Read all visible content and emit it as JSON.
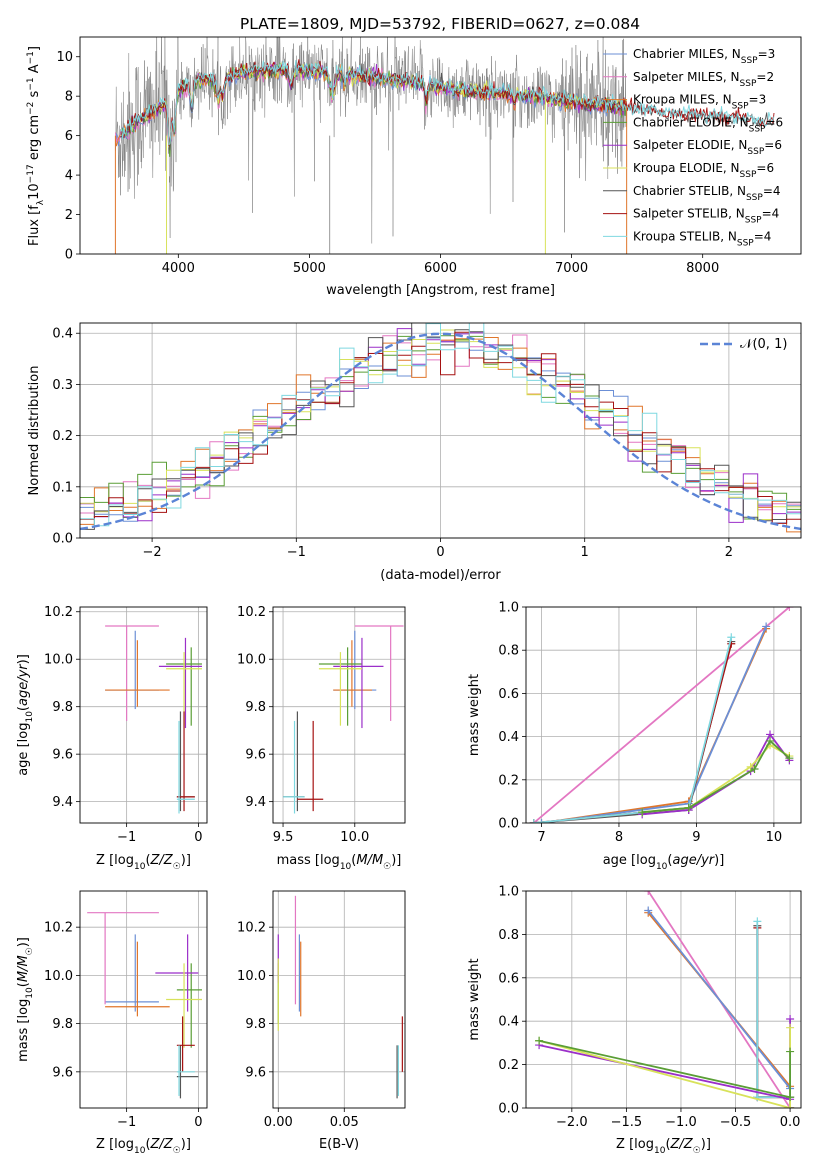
{
  "figure": {
    "title": "PLATE=1809, MJD=53792, FIBERID=0627, z=0.084"
  },
  "colors": {
    "Chabrier MILES": "#6b8fd6",
    "Salpeter MILES": "#e377c2",
    "Kroupa MILES": "#e0762b",
    "Chabrier ELODIE": "#5a9e36",
    "Salpeter ELODIE": "#9b2fc9",
    "Kroupa ELODIE": "#d8e25a",
    "Chabrier STELIB": "#555555",
    "Salpeter STELIB": "#a51212",
    "Kroupa STELIB": "#7fd8e0",
    "data": "#808080",
    "normal": "#5b84d6"
  },
  "chart_data": [
    {
      "id": "spectrum",
      "type": "line",
      "title": "PLATE=1809, MJD=53792, FIBERID=0627, z=0.084",
      "xlabel": "wavelength [Angstrom, rest frame]",
      "ylabel": "Flux [f_λ 10^-17 erg cm^-2 s^-1 A^-1]",
      "xlim": [
        3250,
        8750
      ],
      "ylim": [
        0,
        11
      ],
      "xticks": [
        "4000",
        "5000",
        "6000",
        "7000",
        "8000"
      ],
      "yticks": [
        "0",
        "2",
        "4",
        "6",
        "8",
        "10"
      ],
      "legend_position": "top-right",
      "legend": [
        {
          "name": "Chabrier MILES",
          "n": "3"
        },
        {
          "name": "Salpeter MILES",
          "n": "2"
        },
        {
          "name": "Kroupa MILES",
          "n": "3"
        },
        {
          "name": "Chabrier ELODIE",
          "n": "6"
        },
        {
          "name": "Salpeter ELODIE",
          "n": "6"
        },
        {
          "name": "Kroupa ELODIE",
          "n": "6"
        },
        {
          "name": "Chabrier STELIB",
          "n": "4"
        },
        {
          "name": "Salpeter STELIB",
          "n": "4"
        },
        {
          "name": "Kroupa STELIB",
          "n": "4"
        }
      ],
      "continuum": {
        "x": [
          3520,
          3600,
          3700,
          3800,
          3900,
          4000,
          4100,
          4200,
          4300,
          4400,
          4500,
          4700,
          4900,
          5100,
          5300,
          5500,
          5700,
          5900,
          6100,
          6300,
          6500,
          6700,
          6900,
          7100,
          7300,
          7500,
          7700,
          7900,
          8100,
          8300,
          8500
        ],
        "y": [
          5.8,
          6.2,
          6.8,
          7.2,
          7.6,
          8.3,
          8.6,
          8.9,
          8.8,
          9.0,
          9.2,
          9.3,
          9.3,
          9.2,
          9.1,
          8.95,
          8.8,
          8.6,
          8.3,
          8.2,
          8.1,
          8.0,
          7.8,
          7.6,
          7.5,
          7.3,
          7.1,
          7.0,
          6.9,
          6.8,
          6.6
        ]
      },
      "model_range": [
        3520,
        8550
      ],
      "data_range": [
        3520,
        7420
      ],
      "grid": false
    },
    {
      "id": "residuals",
      "type": "histogram",
      "xlabel": "(data-model)/error",
      "ylabel": "Normed distribution",
      "xlim": [
        -2.5,
        2.5
      ],
      "ylim": [
        0,
        0.42
      ],
      "xticks": [
        "-2",
        "-1",
        "0",
        "1",
        "2"
      ],
      "yticks": [
        "0.0",
        "0.1",
        "0.2",
        "0.3",
        "0.4"
      ],
      "bin_width": 0.1,
      "series_names": [
        "Chabrier MILES",
        "Salpeter MILES",
        "Kroupa MILES",
        "Chabrier ELODIE",
        "Salpeter ELODIE",
        "Kroupa ELODIE",
        "Chabrier STELIB",
        "Salpeter STELIB",
        "Kroupa STELIB"
      ],
      "reference_curve": {
        "label": "N(0,1)",
        "mu": 0,
        "sigma": 1
      },
      "grid": true
    },
    {
      "id": "age-vs-Z",
      "type": "errorbar",
      "xlabel": "Z [log10(Z/Z☉)]",
      "ylabel": "age [log10(age/yr)]",
      "xlim": [
        -1.65,
        0.12
      ],
      "ylim": [
        9.31,
        10.22
      ],
      "xticks": [
        -1,
        0
      ],
      "yticks": [
        9.4,
        9.6,
        9.8,
        10.0,
        10.2
      ],
      "points": [
        {
          "s": "Chabrier MILES",
          "x": -0.88,
          "y": 9.87,
          "xl": -1.3,
          "xh": -0.55,
          "yl": 9.79,
          "yh": 10.12
        },
        {
          "s": "Salpeter MILES",
          "x": -1.0,
          "y": 10.14,
          "xl": -1.3,
          "xh": -0.55,
          "yl": 9.74,
          "yh": 10.14
        },
        {
          "s": "Kroupa MILES",
          "x": -0.85,
          "y": 9.87,
          "xl": -1.3,
          "xh": -0.4,
          "yl": 9.8,
          "yh": 10.08
        },
        {
          "s": "Chabrier ELODIE",
          "x": -0.1,
          "y": 9.98,
          "xl": -0.45,
          "xh": 0.05,
          "yl": 9.72,
          "yh": 10.05
        },
        {
          "s": "Salpeter ELODIE",
          "x": -0.18,
          "y": 9.97,
          "xl": -0.55,
          "xh": 0.05,
          "yl": 9.71,
          "yh": 10.09
        },
        {
          "s": "Kroupa ELODIE",
          "x": -0.2,
          "y": 9.96,
          "xl": -0.45,
          "xh": 0.05,
          "yl": 9.72,
          "yh": 10.03
        },
        {
          "s": "Chabrier STELIB",
          "x": -0.25,
          "y": 9.42,
          "xl": -0.3,
          "xh": -0.05,
          "yl": 9.36,
          "yh": 9.78
        },
        {
          "s": "Salpeter STELIB",
          "x": -0.2,
          "y": 9.42,
          "xl": -0.3,
          "xh": -0.05,
          "yl": 9.36,
          "yh": 9.78
        },
        {
          "s": "Kroupa STELIB",
          "x": -0.27,
          "y": 9.41,
          "xl": -0.3,
          "xh": -0.05,
          "yl": 9.35,
          "yh": 9.74
        }
      ],
      "grid": true
    },
    {
      "id": "age-vs-mass",
      "type": "errorbar",
      "xlabel": "mass [log10(M/M☉)]",
      "ylabel": "",
      "xlim": [
        9.43,
        10.35
      ],
      "ylim": [
        9.31,
        10.22
      ],
      "xticks": [
        9.5,
        10.0
      ],
      "yticks": [
        9.4,
        9.6,
        9.8,
        10.0,
        10.2
      ],
      "points": [
        {
          "s": "Chabrier MILES",
          "x": 10.0,
          "y": 9.87,
          "xl": 9.85,
          "xh": 10.15,
          "yl": 9.79,
          "yh": 10.12
        },
        {
          "s": "Salpeter MILES",
          "x": 10.25,
          "y": 10.14,
          "xl": 10.0,
          "xh": 10.34,
          "yl": 9.74,
          "yh": 10.14
        },
        {
          "s": "Kroupa MILES",
          "x": 9.98,
          "y": 9.87,
          "xl": 9.85,
          "xh": 10.12,
          "yl": 9.8,
          "yh": 10.08
        },
        {
          "s": "Chabrier ELODIE",
          "x": 9.95,
          "y": 9.98,
          "xl": 9.75,
          "xh": 10.05,
          "yl": 9.72,
          "yh": 10.05
        },
        {
          "s": "Salpeter ELODIE",
          "x": 10.05,
          "y": 9.97,
          "xl": 9.85,
          "xh": 10.2,
          "yl": 9.71,
          "yh": 10.09
        },
        {
          "s": "Kroupa ELODIE",
          "x": 9.9,
          "y": 9.96,
          "xl": 9.75,
          "xh": 10.05,
          "yl": 9.72,
          "yh": 10.03
        },
        {
          "s": "Chabrier STELIB",
          "x": 9.6,
          "y": 9.42,
          "xl": 9.5,
          "xh": 9.65,
          "yl": 9.36,
          "yh": 9.78
        },
        {
          "s": "Salpeter STELIB",
          "x": 9.71,
          "y": 9.41,
          "xl": 9.6,
          "xh": 9.78,
          "yl": 9.36,
          "yh": 9.74
        },
        {
          "s": "Kroupa STELIB",
          "x": 9.58,
          "y": 9.42,
          "xl": 9.5,
          "xh": 9.65,
          "yl": 9.35,
          "yh": 9.74
        }
      ],
      "grid": true
    },
    {
      "id": "weight-vs-age",
      "type": "line",
      "xlabel": "age [log10(age/yr)]",
      "ylabel": "mass weight",
      "xlim": [
        6.8,
        10.35
      ],
      "ylim": [
        0,
        1
      ],
      "xticks": [
        7,
        8,
        9,
        10
      ],
      "yticks": [
        0.0,
        0.2,
        0.4,
        0.6,
        0.8,
        1.0
      ],
      "series": [
        {
          "name": "Salpeter MILES",
          "x": [
            6.9,
            10.2
          ],
          "y": [
            0.0,
            1.0
          ]
        },
        {
          "name": "Kroupa MILES",
          "x": [
            7.0,
            8.9,
            9.9
          ],
          "y": [
            0.0,
            0.1,
            0.9
          ]
        },
        {
          "name": "Chabrier MILES",
          "x": [
            7.0,
            8.9,
            9.9
          ],
          "y": [
            0.0,
            0.09,
            0.91
          ]
        },
        {
          "name": "Chabrier STELIB",
          "x": [
            6.9,
            8.9,
            9.45
          ],
          "y": [
            0.0,
            0.06,
            0.84
          ]
        },
        {
          "name": "Salpeter STELIB",
          "x": [
            6.9,
            8.9,
            9.45
          ],
          "y": [
            0.0,
            0.07,
            0.83
          ]
        },
        {
          "name": "Kroupa STELIB",
          "x": [
            6.9,
            8.9,
            9.45
          ],
          "y": [
            0.0,
            0.07,
            0.86
          ]
        },
        {
          "name": "Salpeter ELODIE",
          "x": [
            8.3,
            8.9,
            9.7,
            9.95,
            10.2
          ],
          "y": [
            0.04,
            0.06,
            0.24,
            0.41,
            0.29
          ]
        },
        {
          "name": "Kroupa ELODIE",
          "x": [
            8.3,
            8.9,
            9.7,
            9.95,
            10.2
          ],
          "y": [
            0.05,
            0.07,
            0.26,
            0.36,
            0.31
          ]
        },
        {
          "name": "Chabrier ELODIE",
          "x": [
            8.3,
            8.9,
            9.75,
            9.95,
            10.2
          ],
          "y": [
            0.05,
            0.07,
            0.25,
            0.38,
            0.3
          ]
        }
      ],
      "grid": true
    },
    {
      "id": "mass-vs-Z",
      "type": "errorbar",
      "xlabel": "Z [log10(Z/Z☉)]",
      "ylabel": "mass [log10(M/M☉)]",
      "xlim": [
        -1.65,
        0.12
      ],
      "ylim": [
        9.45,
        10.35
      ],
      "xticks": [
        -1,
        0
      ],
      "yticks": [
        9.6,
        9.8,
        10.0,
        10.2
      ],
      "points": [
        {
          "s": "Chabrier MILES",
          "x": -0.88,
          "y": 9.89,
          "xl": -1.3,
          "xh": -0.55,
          "yl": 9.85,
          "yh": 10.17
        },
        {
          "s": "Salpeter MILES",
          "x": -1.3,
          "y": 10.26,
          "xl": -1.55,
          "xh": -0.55,
          "yl": 9.88,
          "yh": 10.26
        },
        {
          "s": "Kroupa MILES",
          "x": -0.85,
          "y": 9.87,
          "xl": -1.3,
          "xh": -0.4,
          "yl": 9.83,
          "yh": 10.14
        },
        {
          "s": "Chabrier ELODIE",
          "x": -0.1,
          "y": 9.94,
          "xl": -0.3,
          "xh": 0.05,
          "yl": 9.7,
          "yh": 10.05
        },
        {
          "s": "Salpeter ELODIE",
          "x": -0.15,
          "y": 10.01,
          "xl": -0.6,
          "xh": 0.0,
          "yl": 9.85,
          "yh": 10.17
        },
        {
          "s": "Kroupa ELODIE",
          "x": -0.2,
          "y": 9.9,
          "xl": -0.45,
          "xh": 0.05,
          "yl": 9.7,
          "yh": 10.05
        },
        {
          "s": "Chabrier STELIB",
          "x": -0.25,
          "y": 9.58,
          "xl": -0.3,
          "xh": 0.0,
          "yl": 9.49,
          "yh": 9.71
        },
        {
          "s": "Salpeter STELIB",
          "x": -0.22,
          "y": 9.71,
          "xl": -0.3,
          "xh": -0.05,
          "yl": 9.6,
          "yh": 9.83
        },
        {
          "s": "Kroupa STELIB",
          "x": -0.27,
          "y": 9.6,
          "xl": -0.3,
          "xh": -0.05,
          "yl": 9.5,
          "yh": 9.71
        }
      ],
      "grid": true
    },
    {
      "id": "mass-vs-EBV",
      "type": "errorbar",
      "xlabel": "E(B-V)",
      "ylabel": "",
      "xlim": [
        -0.004,
        0.096
      ],
      "ylim": [
        9.45,
        10.35
      ],
      "xticks": [
        0.0,
        0.05
      ],
      "yticks": [
        9.6,
        9.8,
        10.0,
        10.2
      ],
      "points": [
        {
          "s": "Chabrier MILES",
          "x": 0.016,
          "y": 10.0,
          "xl": 0.016,
          "xh": 0.016,
          "yl": 9.85,
          "yh": 10.17
        },
        {
          "s": "Salpeter MILES",
          "x": 0.013,
          "y": 10.1,
          "xl": 0.013,
          "xh": 0.013,
          "yl": 9.88,
          "yh": 10.33
        },
        {
          "s": "Kroupa MILES",
          "x": 0.017,
          "y": 10.0,
          "xl": 0.017,
          "xh": 0.017,
          "yl": 9.83,
          "yh": 10.14
        },
        {
          "s": "Chabrier ELODIE",
          "x": 0.0,
          "y": 9.95,
          "xl": 0.0,
          "xh": 0.0,
          "yl": 9.8,
          "yh": 10.05
        },
        {
          "s": "Salpeter ELODIE",
          "x": 0.0,
          "y": 10.05,
          "xl": 0.0,
          "xh": 0.0,
          "yl": 9.97,
          "yh": 10.17
        },
        {
          "s": "Kroupa ELODIE",
          "x": 0.0,
          "y": 9.95,
          "xl": 0.0,
          "xh": 0.0,
          "yl": 9.77,
          "yh": 10.07
        },
        {
          "s": "Chabrier STELIB",
          "x": 0.09,
          "y": 9.6,
          "xl": 0.09,
          "xh": 0.09,
          "yl": 9.49,
          "yh": 9.71
        },
        {
          "s": "Salpeter STELIB",
          "x": 0.094,
          "y": 9.7,
          "xl": 0.094,
          "xh": 0.094,
          "yl": 9.6,
          "yh": 9.83
        },
        {
          "s": "Kroupa STELIB",
          "x": 0.091,
          "y": 9.6,
          "xl": 0.091,
          "xh": 0.091,
          "yl": 9.5,
          "yh": 9.71
        }
      ],
      "grid": true
    },
    {
      "id": "weight-vs-Z",
      "type": "line",
      "xlabel": "Z [log10(Z/Z☉)]",
      "ylabel": "mass weight",
      "xlim": [
        -2.42,
        0.1
      ],
      "ylim": [
        0,
        1
      ],
      "xticks": [
        -2.0,
        -1.5,
        -1.0,
        -0.5,
        0.0
      ],
      "yticks": [
        0.0,
        0.2,
        0.4,
        0.6,
        0.8,
        1.0
      ],
      "series": [
        {
          "name": "Salpeter MILES",
          "x": [
            -1.3,
            0.0
          ],
          "y": [
            1.0,
            0.0
          ]
        },
        {
          "name": "Kroupa MILES",
          "x": [
            -1.3,
            0.0,
            0.0
          ],
          "y": [
            0.9,
            0.1,
            0.0
          ]
        },
        {
          "name": "Chabrier MILES",
          "x": [
            -1.3,
            0.0,
            0.0
          ],
          "y": [
            0.91,
            0.09,
            0.0
          ]
        },
        {
          "name": "Chabrier STELIB",
          "x": [
            -0.3,
            -0.3,
            0.0,
            0.0
          ],
          "y": [
            0.84,
            0.05,
            0.05,
            0.0
          ]
        },
        {
          "name": "Salpeter STELIB",
          "x": [
            -0.3,
            -0.3,
            0.0,
            0.0
          ],
          "y": [
            0.83,
            0.05,
            0.05,
            0.0
          ]
        },
        {
          "name": "Kroupa STELIB",
          "x": [
            -0.3,
            -0.3,
            0.0,
            0.0
          ],
          "y": [
            0.86,
            0.05,
            0.05,
            0.0
          ]
        },
        {
          "name": "Salpeter ELODIE",
          "x": [
            -2.3,
            0.0,
            0.0
          ],
          "y": [
            0.29,
            0.04,
            0.41
          ]
        },
        {
          "name": "Kroupa ELODIE",
          "x": [
            -2.3,
            0.0,
            0.0
          ],
          "y": [
            0.31,
            0.0,
            0.37
          ]
        },
        {
          "name": "Chabrier ELODIE",
          "x": [
            -2.3,
            0.0,
            0.0
          ],
          "y": [
            0.31,
            0.05,
            0.26
          ]
        }
      ],
      "grid": true
    }
  ]
}
